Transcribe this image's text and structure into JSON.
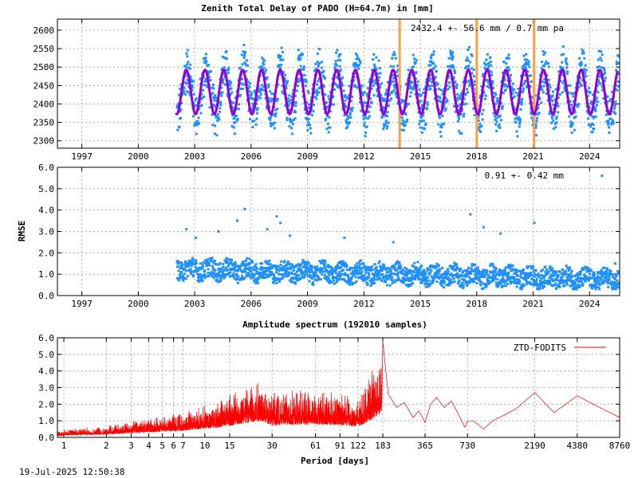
{
  "timestamp": "19-Jul-2025 12:50:38",
  "colors": {
    "observed": "#1e90ff",
    "model": "#9400d3",
    "marker": "#ffa040",
    "spectrum": "#ff0000",
    "frame": "#000000",
    "grid": "#a0a0a0"
  },
  "chart_data": [
    {
      "type": "scatter",
      "title": "Zenith Total Delay of PADO (H=64.7m) in [mm]",
      "annotation": "2432.4 +-  56.6 mm /  0.7 mm pa",
      "xlabel": "",
      "ylabel": "",
      "xlim": [
        1995.7,
        2025.6
      ],
      "ylim": [
        2280,
        2630
      ],
      "x_ticks": [
        "1997",
        "2000",
        "2003",
        "2006",
        "2009",
        "2012",
        "2015",
        "2018",
        "2021",
        "2024"
      ],
      "y_ticks": [
        "2300",
        "2350",
        "2400",
        "2450",
        "2500",
        "2550",
        "2600"
      ],
      "data_start": 2002.0,
      "data_end": 2025.5,
      "series": [
        {
          "values": {
            "mean": 2432.4,
            "seasonal_amplitude": 60,
            "scatter": 70,
            "min": 2280,
            "max": 2625
          }
        },
        {
          "values": {
            "mean": 2432.4,
            "seasonal_amplitude": 60
          }
        }
      ],
      "markers": [
        2013.9,
        2018.0,
        2021.05
      ],
      "grid": true
    },
    {
      "type": "scatter",
      "title": "",
      "annotation": "0.91 +-  0.42 mm",
      "xlabel": "",
      "ylabel": "RMSE",
      "xlim": [
        1995.7,
        2025.6
      ],
      "ylim": [
        0.0,
        6.0
      ],
      "x_ticks": [
        "1997",
        "2000",
        "2003",
        "2006",
        "2009",
        "2012",
        "2015",
        "2018",
        "2021",
        "2024"
      ],
      "y_ticks": [
        "0.0",
        "1.0",
        "2.0",
        "3.0",
        "4.0",
        "5.0",
        "6.0"
      ],
      "series": [
        {
          "values": {
            "mean": 0.91,
            "std": 0.42,
            "level_2002": 1.25,
            "level_2025": 0.75
          }
        }
      ],
      "outliers": [
        [
          2002.5,
          3.1
        ],
        [
          2003.0,
          2.7
        ],
        [
          2004.2,
          3.0
        ],
        [
          2005.6,
          4.05
        ],
        [
          2005.2,
          3.5
        ],
        [
          2007.3,
          3.7
        ],
        [
          2007.5,
          3.4
        ],
        [
          2006.8,
          3.1
        ],
        [
          2008.0,
          2.8
        ],
        [
          2010.9,
          2.7
        ],
        [
          2013.5,
          2.5
        ],
        [
          2017.6,
          3.8
        ],
        [
          2018.3,
          3.2
        ],
        [
          2019.2,
          2.9
        ],
        [
          2021.0,
          3.4
        ],
        [
          2024.6,
          5.6
        ],
        [
          2025.3,
          1.5
        ]
      ],
      "grid": true
    },
    {
      "type": "line",
      "title": "Amplitude spectrum (192010 samples)",
      "xlabel": "Period [days]",
      "ylabel": "",
      "x_scale": "log",
      "xlim": [
        0.9,
        8760
      ],
      "ylim": [
        0.0,
        6.0
      ],
      "x_ticks": [
        "1",
        "2",
        "3",
        "4",
        "5",
        "6",
        "7",
        "10",
        "15",
        "30",
        "61",
        "91",
        "122",
        "183",
        "365",
        "730",
        "2190",
        "4380",
        "8760"
      ],
      "y_ticks": [
        "0.0",
        "1.0",
        "2.0",
        "3.0",
        "4.0",
        "5.0",
        "6.0"
      ],
      "legend": {
        "position": "top-right",
        "entries": [
          "ZTD-FODITS"
        ]
      },
      "series": [
        {
          "name": "ZTD-FODITS",
          "x": [
            183,
            200,
            230,
            260,
            300,
            330,
            365,
            400,
            440,
            500,
            560,
            620,
            700,
            730,
            800,
            950,
            1100,
            1300,
            1600,
            2190,
            3000,
            4380,
            6000,
            8760
          ],
          "values": [
            5.8,
            2.6,
            1.8,
            2.1,
            1.2,
            1.6,
            0.9,
            2.0,
            2.4,
            1.8,
            2.2,
            1.5,
            0.6,
            1.0,
            1.0,
            0.5,
            1.0,
            1.3,
            1.7,
            2.7,
            1.5,
            2.5,
            1.9,
            1.2
          ]
        }
      ],
      "peaks": [
        [
          1,
          0.5
        ],
        [
          2,
          0.7
        ],
        [
          7,
          1.6
        ],
        [
          12,
          2.3
        ],
        [
          25,
          3.9
        ],
        [
          30,
          2.9
        ],
        [
          35,
          3.0
        ],
        [
          45,
          3.0
        ],
        [
          61,
          3.1
        ],
        [
          91,
          2.9
        ],
        [
          122,
          2.5
        ],
        [
          183,
          5.8
        ]
      ],
      "grid": true
    }
  ]
}
